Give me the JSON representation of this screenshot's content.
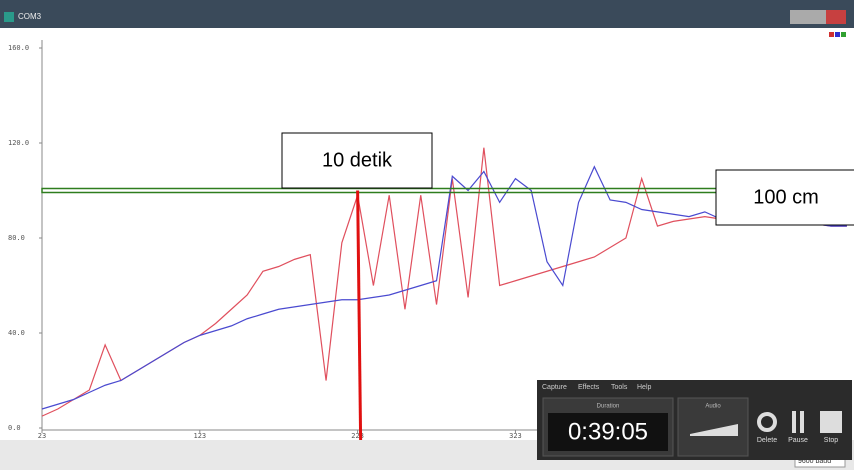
{
  "window": {
    "title": "COM3"
  },
  "chart_data": {
    "type": "line",
    "x": [
      23,
      33,
      43,
      53,
      63,
      73,
      83,
      93,
      103,
      113,
      123,
      133,
      143,
      153,
      163,
      173,
      183,
      193,
      203,
      213,
      223,
      233,
      243,
      253,
      263,
      273,
      283,
      293,
      303,
      313,
      323,
      333,
      343,
      353,
      363,
      373,
      383,
      393,
      403,
      413,
      423,
      433,
      443,
      453,
      463,
      473,
      483,
      493,
      503,
      513,
      523,
      533
    ],
    "series": [
      {
        "color": "#e0505e",
        "values": [
          5,
          8,
          12,
          16,
          35,
          20,
          24,
          28,
          32,
          36,
          39,
          44,
          50,
          56,
          66,
          68,
          71,
          73,
          20,
          78,
          98,
          60,
          98,
          50,
          98,
          52,
          105,
          55,
          118,
          60,
          62,
          64,
          66,
          68,
          70,
          72,
          76,
          80,
          105,
          85,
          87,
          88,
          89,
          88,
          88,
          87,
          87,
          86,
          86,
          86,
          85,
          85
        ]
      },
      {
        "color": "#4a4ad0",
        "values": [
          8,
          10,
          12,
          15,
          18,
          20,
          24,
          28,
          32,
          36,
          39,
          41,
          43,
          46,
          48,
          50,
          51,
          52,
          53,
          54,
          54,
          55,
          56,
          58,
          60,
          62,
          106,
          100,
          108,
          95,
          105,
          100,
          70,
          60,
          95,
          110,
          96,
          95,
          92,
          91,
          90,
          89,
          91,
          88,
          88,
          87,
          87,
          86,
          86,
          86,
          85,
          85
        ]
      }
    ],
    "xlim": [
      23,
      535
    ],
    "ylim": [
      0,
      160
    ],
    "xticks": [
      23,
      123,
      223,
      323
    ],
    "yticks": [
      {
        "value": 0,
        "label": "0.0"
      },
      {
        "value": 40,
        "label": "40.0"
      },
      {
        "value": 80,
        "label": "80.0"
      },
      {
        "value": 120,
        "label": "120.0"
      },
      {
        "value": 160,
        "label": "160.0"
      }
    ],
    "hline": {
      "value": 100,
      "color": "#2e7d1e"
    },
    "vline": {
      "value": 223,
      "color": "#e01010"
    }
  },
  "annotations": [
    "10 detik",
    "100 cm"
  ],
  "recorder": {
    "menu": [
      "Capture",
      "Effects",
      "Tools",
      "Help"
    ],
    "duration_label": "Duration",
    "duration": "0:39:05",
    "audio_label": "Audio",
    "buttons": [
      "Delete",
      "Pause",
      "Stop"
    ]
  },
  "status": {
    "baud": "9600 baud"
  }
}
